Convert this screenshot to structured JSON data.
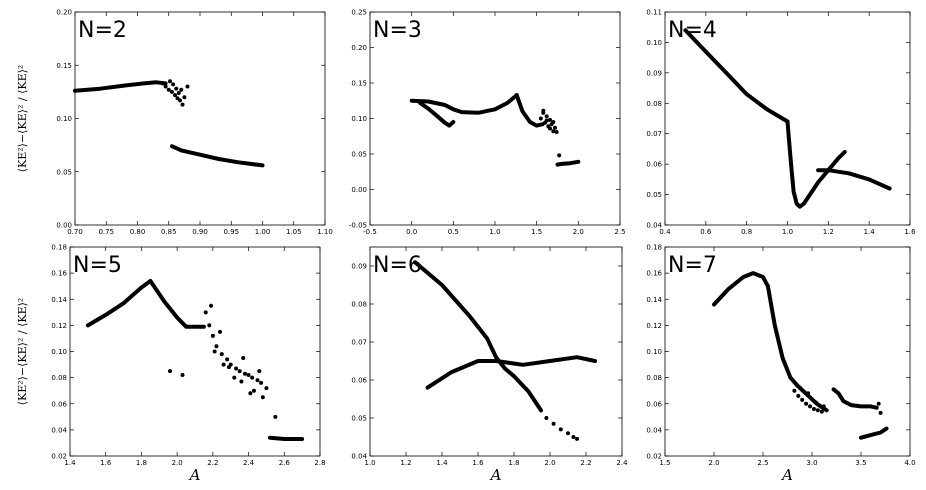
{
  "chart_data": [
    {
      "type": "scatter",
      "title": "N=2",
      "xlabel": "",
      "ylabel": "⟨KE²⟩−⟨KE⟩² / ⟨KE⟩²",
      "xlim": [
        0.7,
        1.1
      ],
      "ylim": [
        0.0,
        0.2
      ],
      "xticks": [
        "0.70",
        "0.75",
        "0.80",
        "0.85",
        "0.90",
        "0.95",
        "1.00",
        "1.05",
        "1.10"
      ],
      "yticks": [
        "0.00",
        "0.05",
        "0.10",
        "0.15",
        "0.20"
      ],
      "series": [
        {
          "x": [
            0.7,
            0.74,
            0.78,
            0.81,
            0.83,
            0.845
          ],
          "y": [
            0.126,
            0.128,
            0.131,
            0.133,
            0.134,
            0.133
          ]
        },
        {
          "x": [
            0.855,
            0.87,
            0.9,
            0.93,
            0.96,
            1.0
          ],
          "y": [
            0.074,
            0.07,
            0.066,
            0.062,
            0.059,
            0.056
          ]
        }
      ],
      "scatter": {
        "x": [
          0.84,
          0.845,
          0.85,
          0.852,
          0.855,
          0.857,
          0.86,
          0.862,
          0.864,
          0.866,
          0.868,
          0.87,
          0.872,
          0.875,
          0.88
        ],
        "y": [
          0.133,
          0.13,
          0.127,
          0.135,
          0.125,
          0.132,
          0.122,
          0.128,
          0.119,
          0.124,
          0.117,
          0.127,
          0.113,
          0.12,
          0.13
        ]
      }
    },
    {
      "type": "scatter",
      "title": "N=3",
      "xlabel": "",
      "ylabel": "",
      "xlim": [
        -0.5,
        2.5
      ],
      "ylim": [
        -0.05,
        0.25
      ],
      "xticks": [
        "-0.5",
        "0.0",
        "0.5",
        "1.0",
        "1.5",
        "2.0",
        "2.5"
      ],
      "yticks": [
        "-0.05",
        "0.00",
        "0.05",
        "0.10",
        "0.15",
        "0.20",
        "0.25"
      ],
      "series": [
        {
          "x": [
            0.0,
            0.2,
            0.4,
            0.5,
            0.6,
            0.8,
            1.0,
            1.15,
            1.26
          ],
          "y": [
            0.125,
            0.124,
            0.119,
            0.113,
            0.109,
            0.108,
            0.113,
            0.122,
            0.133
          ]
        },
        {
          "x": [
            0.1,
            0.2,
            0.3,
            0.4,
            0.45,
            0.5
          ],
          "y": [
            0.122,
            0.114,
            0.104,
            0.094,
            0.09,
            0.095
          ]
        },
        {
          "x": [
            1.26,
            1.33,
            1.42,
            1.5,
            1.57
          ],
          "y": [
            0.133,
            0.11,
            0.095,
            0.09,
            0.092
          ]
        },
        {
          "x": [
            1.75,
            1.8,
            1.9,
            2.0
          ],
          "y": [
            0.035,
            0.036,
            0.037,
            0.039
          ]
        }
      ],
      "scatter": {
        "x": [
          1.55,
          1.58,
          1.6,
          1.62,
          1.64,
          1.66,
          1.68,
          1.7,
          1.72,
          1.58,
          1.62,
          1.66,
          1.7,
          1.74,
          1.77
        ],
        "y": [
          0.1,
          0.108,
          0.094,
          0.103,
          0.089,
          0.098,
          0.092,
          0.082,
          0.087,
          0.111,
          0.097,
          0.086,
          0.095,
          0.081,
          0.048
        ]
      }
    },
    {
      "type": "scatter",
      "title": "N=4",
      "xlabel": "",
      "ylabel": "",
      "xlim": [
        0.4,
        1.6
      ],
      "ylim": [
        0.04,
        0.11
      ],
      "xticks": [
        "0.4",
        "0.6",
        "0.8",
        "1.0",
        "1.2",
        "1.4",
        "1.6"
      ],
      "yticks": [
        "0.04",
        "0.05",
        "0.06",
        "0.07",
        "0.08",
        "0.09",
        "0.10",
        "0.11"
      ],
      "series": [
        {
          "x": [
            0.5,
            0.6,
            0.7,
            0.8,
            0.9,
            1.0
          ],
          "y": [
            0.104,
            0.097,
            0.09,
            0.083,
            0.078,
            0.074
          ]
        },
        {
          "x": [
            1.0,
            1.01,
            1.02,
            1.03,
            1.045,
            1.06,
            1.08,
            1.1,
            1.15,
            1.2,
            1.25,
            1.28
          ],
          "y": [
            0.074,
            0.066,
            0.058,
            0.051,
            0.047,
            0.046,
            0.047,
            0.049,
            0.054,
            0.058,
            0.062,
            0.064
          ]
        },
        {
          "x": [
            1.15,
            1.2,
            1.3,
            1.4,
            1.5
          ],
          "y": [
            0.058,
            0.058,
            0.057,
            0.055,
            0.052
          ]
        }
      ],
      "scatter": {
        "x": [],
        "y": []
      }
    },
    {
      "type": "scatter",
      "title": "N=5",
      "xlabel": "A",
      "ylabel": "⟨KE²⟩−⟨KE⟩² / ⟨KE⟩²",
      "xlim": [
        1.4,
        2.8
      ],
      "ylim": [
        0.02,
        0.18
      ],
      "xticks": [
        "1.4",
        "1.6",
        "1.8",
        "2.0",
        "2.2",
        "2.4",
        "2.6",
        "2.8"
      ],
      "yticks": [
        "0.02",
        "0.04",
        "0.06",
        "0.08",
        "0.10",
        "0.12",
        "0.14",
        "0.16",
        "0.18"
      ],
      "series": [
        {
          "x": [
            1.5,
            1.6,
            1.7,
            1.8,
            1.85
          ],
          "y": [
            0.12,
            0.128,
            0.137,
            0.149,
            0.154
          ]
        },
        {
          "x": [
            1.85,
            1.93,
            2.0,
            2.05,
            2.1,
            2.15
          ],
          "y": [
            0.154,
            0.138,
            0.126,
            0.119,
            0.119,
            0.119
          ]
        },
        {
          "x": [
            2.52,
            2.6,
            2.7
          ],
          "y": [
            0.034,
            0.033,
            0.033
          ]
        }
      ],
      "scatter": {
        "x": [
          1.96,
          2.03,
          2.16,
          2.18,
          2.2,
          2.22,
          2.25,
          2.28,
          2.3,
          2.33,
          2.35,
          2.38,
          2.4,
          2.42,
          2.45,
          2.47,
          2.5,
          2.21,
          2.26,
          2.32,
          2.37,
          2.43,
          2.48,
          2.19,
          2.24,
          2.29,
          2.36,
          2.41,
          2.46,
          2.55
        ],
        "y": [
          0.085,
          0.082,
          0.13,
          0.12,
          0.112,
          0.104,
          0.098,
          0.094,
          0.09,
          0.087,
          0.085,
          0.083,
          0.082,
          0.08,
          0.078,
          0.076,
          0.072,
          0.1,
          0.09,
          0.08,
          0.095,
          0.07,
          0.065,
          0.135,
          0.115,
          0.088,
          0.077,
          0.068,
          0.085,
          0.05
        ]
      }
    },
    {
      "type": "scatter",
      "title": "N=6",
      "xlabel": "A",
      "ylabel": "",
      "xlim": [
        1.0,
        2.4
      ],
      "ylim": [
        0.04,
        0.095
      ],
      "xticks": [
        "1.0",
        "1.2",
        "1.4",
        "1.6",
        "1.8",
        "2.0",
        "2.2",
        "2.4"
      ],
      "yticks": [
        "0.04",
        "0.05",
        "0.06",
        "0.07",
        "0.08",
        "0.09"
      ],
      "series": [
        {
          "x": [
            1.25,
            1.4,
            1.55,
            1.65,
            1.7,
            1.75,
            1.8,
            1.88,
            1.95
          ],
          "y": [
            0.091,
            0.085,
            0.077,
            0.071,
            0.066,
            0.063,
            0.061,
            0.057,
            0.052
          ]
        },
        {
          "x": [
            1.32,
            1.45,
            1.6,
            1.7,
            1.85,
            2.0,
            2.15,
            2.25
          ],
          "y": [
            0.058,
            0.062,
            0.065,
            0.065,
            0.064,
            0.065,
            0.066,
            0.065
          ]
        }
      ],
      "scatter": {
        "x": [
          1.98,
          2.02,
          2.06,
          2.1,
          2.13,
          2.15
        ],
        "y": [
          0.05,
          0.0485,
          0.047,
          0.046,
          0.045,
          0.0445
        ]
      }
    },
    {
      "type": "scatter",
      "title": "N=7",
      "xlabel": "A",
      "ylabel": "",
      "xlim": [
        1.5,
        4.0
      ],
      "ylim": [
        0.02,
        0.18
      ],
      "xticks": [
        "1.5",
        "2.0",
        "2.5",
        "3.0",
        "3.5",
        "4.0"
      ],
      "yticks": [
        "0.02",
        "0.04",
        "0.06",
        "0.08",
        "0.10",
        "0.12",
        "0.14",
        "0.16",
        "0.18"
      ],
      "series": [
        {
          "x": [
            2.0,
            2.15,
            2.3,
            2.4,
            2.5,
            2.55
          ],
          "y": [
            0.136,
            0.148,
            0.157,
            0.16,
            0.157,
            0.15
          ]
        },
        {
          "x": [
            2.55,
            2.62,
            2.7,
            2.78,
            2.85
          ],
          "y": [
            0.15,
            0.12,
            0.095,
            0.08,
            0.074
          ]
        },
        {
          "x": [
            2.85,
            2.95,
            3.05,
            3.15
          ],
          "y": [
            0.074,
            0.067,
            0.06,
            0.055
          ]
        },
        {
          "x": [
            3.22,
            3.27,
            3.32,
            3.4,
            3.5,
            3.6,
            3.66
          ],
          "y": [
            0.071,
            0.068,
            0.062,
            0.059,
            0.058,
            0.058,
            0.057
          ]
        },
        {
          "x": [
            3.5,
            3.6,
            3.7,
            3.76
          ],
          "y": [
            0.034,
            0.036,
            0.038,
            0.041
          ]
        }
      ],
      "scatter": {
        "x": [
          2.82,
          2.86,
          2.9,
          2.94,
          2.98,
          3.02,
          3.06,
          3.1,
          2.88,
          2.96,
          3.04,
          3.12,
          3.68,
          3.7
        ],
        "y": [
          0.07,
          0.066,
          0.063,
          0.06,
          0.058,
          0.056,
          0.055,
          0.054,
          0.072,
          0.068,
          0.061,
          0.058,
          0.06,
          0.053
        ]
      }
    }
  ]
}
